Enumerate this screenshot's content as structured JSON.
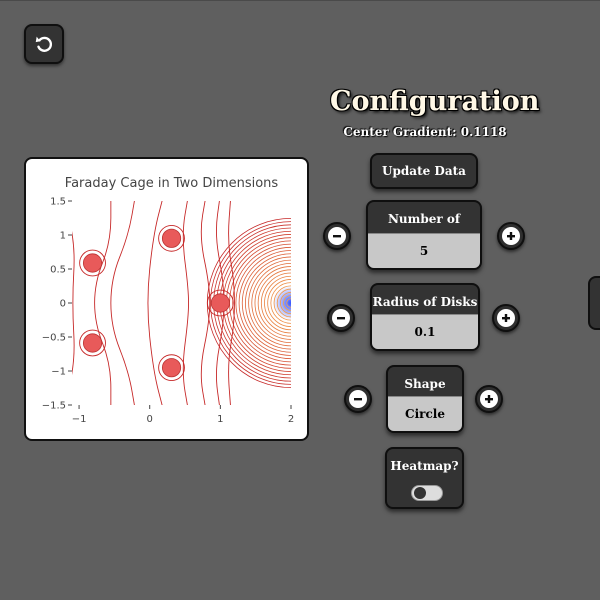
{
  "config": {
    "title": "Configuration",
    "center_gradient_label": "Center Gradient: 0.1118",
    "update_button": "Update Data",
    "disks": {
      "label": "Number of Disks",
      "value": "5"
    },
    "radius": {
      "label": "Radius of Disks",
      "value": "0.1"
    },
    "shape": {
      "label": "Shape",
      "value": "Circle"
    },
    "heatmap": {
      "label": "Heatmap?",
      "enabled": false
    }
  },
  "icons": {
    "back": "undo-arrow-icon",
    "minus": "minus-icon",
    "plus": "plus-icon"
  },
  "chart_data": {
    "type": "contour",
    "title": "Faraday Cage in Two Dimensions",
    "xlabel": "",
    "ylabel": "",
    "xlim": [
      -1.1,
      2.0
    ],
    "ylim": [
      -1.5,
      1.5
    ],
    "x_ticks": [
      "−1",
      "0",
      "1",
      "2"
    ],
    "x_tick_values": [
      -1,
      0,
      1,
      2
    ],
    "y_ticks": [
      "1.5",
      "1",
      "0.5",
      "0",
      "−0.5",
      "−1",
      "−1.5"
    ],
    "y_tick_values": [
      1.5,
      1,
      0.5,
      0,
      -0.5,
      -1,
      -1.5
    ],
    "disks": [
      {
        "x": 1.0,
        "y": 0.0
      },
      {
        "x": 0.309,
        "y": 0.951
      },
      {
        "x": -0.809,
        "y": 0.588
      },
      {
        "x": -0.809,
        "y": -0.588
      },
      {
        "x": 0.309,
        "y": -0.951
      }
    ],
    "disk_radius": 0.1,
    "colors": {
      "contour_near": "#c62828",
      "contour_far": "#f7a54a",
      "disk": "#e85a5a",
      "source": "#2a4cff"
    }
  }
}
